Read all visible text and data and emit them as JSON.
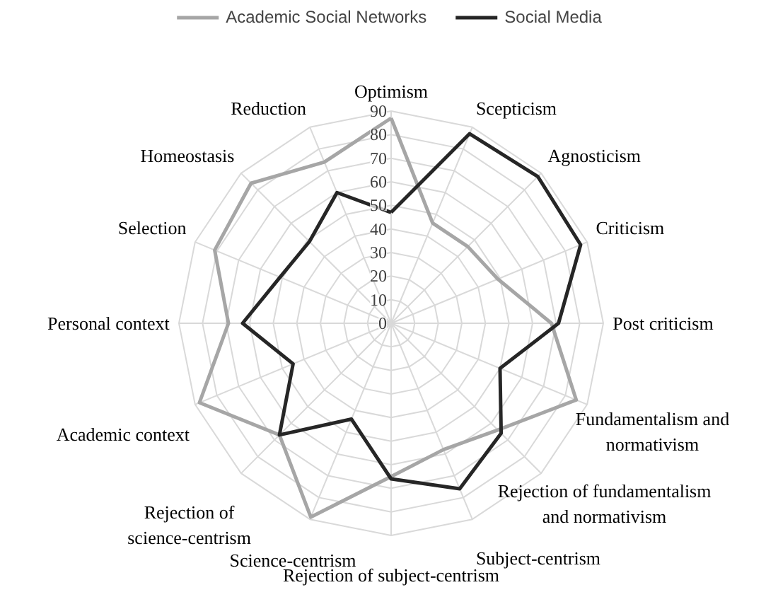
{
  "chart_data": {
    "type": "radar",
    "categories": [
      "Optimism",
      "Scepticism",
      "Agnosticism",
      "Criticism",
      "Post criticism",
      "Fundamentalism and normativism",
      "Rejection of fundamentalism and normativism",
      "Subject-centrism",
      "Rejection of subject-centrism",
      "Science-centrism",
      "Rejection of science-centrism",
      "Academic context",
      "Personal context",
      "Selection",
      "Homeostasis",
      "Reduction"
    ],
    "series": [
      {
        "name": "Academic Social Networks",
        "color": "#a6a6a6",
        "values": [
          87,
          46,
          46,
          49,
          68,
          85,
          64,
          58,
          65,
          89,
          67,
          88,
          69,
          81,
          84,
          74
        ]
      },
      {
        "name": "Social Media",
        "color": "#262626",
        "values": [
          47,
          87,
          88,
          87,
          71,
          50,
          66,
          76,
          66,
          44,
          67,
          45,
          63,
          51,
          49,
          60
        ]
      }
    ],
    "ylim": [
      0,
      90
    ],
    "yticks": [
      0,
      10,
      20,
      30,
      40,
      50,
      60,
      70,
      80,
      90
    ],
    "grid": true,
    "legend": "top",
    "marker": "none",
    "line_style": "solid"
  }
}
